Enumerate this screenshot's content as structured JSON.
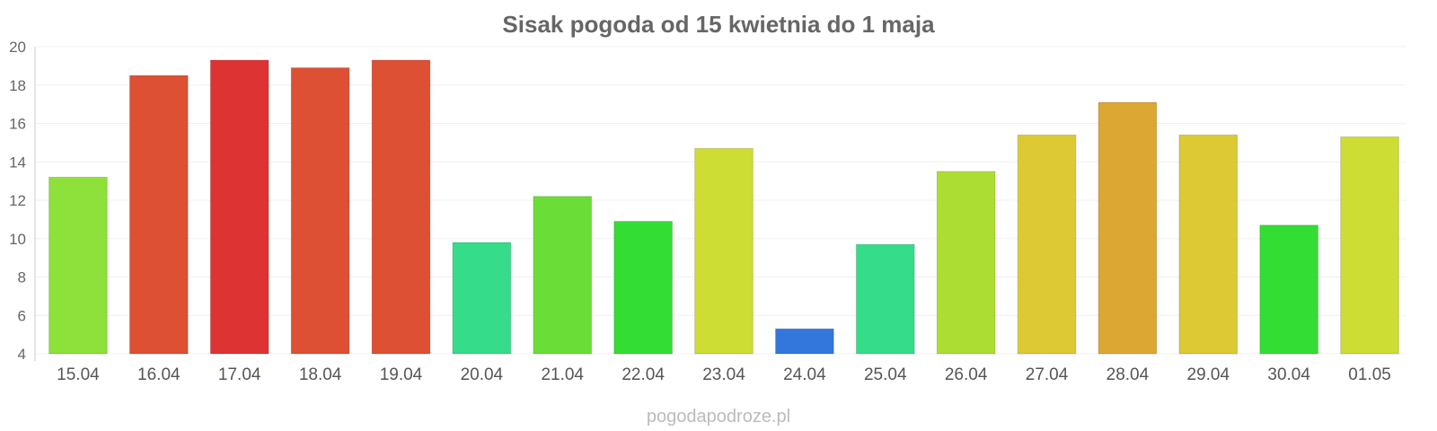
{
  "chart_data": {
    "type": "bar",
    "title": "Sisak pogoda od 15 kwietnia do 1 maja",
    "xlabel": "",
    "ylabel": "",
    "ylim": [
      4,
      20
    ],
    "yticks": [
      4,
      6,
      8,
      10,
      12,
      14,
      16,
      18,
      20
    ],
    "grid": true,
    "categories": [
      "15.04",
      "16.04",
      "17.04",
      "18.04",
      "19.04",
      "20.04",
      "21.04",
      "22.04",
      "23.04",
      "24.04",
      "25.04",
      "26.04",
      "27.04",
      "28.04",
      "29.04",
      "30.04",
      "01.05"
    ],
    "values": [
      13.2,
      18.5,
      19.3,
      18.9,
      19.3,
      9.8,
      12.2,
      10.9,
      14.7,
      5.3,
      9.7,
      13.5,
      15.4,
      17.1,
      15.4,
      10.7,
      15.3
    ],
    "colors": [
      "#8ee03a",
      "#dd5034",
      "#dd3333",
      "#dd5034",
      "#dd5034",
      "#35dc8a",
      "#6ade36",
      "#33dd33",
      "#cddd33",
      "#3377dd",
      "#35dc8a",
      "#acdd33",
      "#ddc933",
      "#dda733",
      "#ddc933",
      "#33dd33",
      "#cddd33"
    ]
  },
  "source": "pogodapodroze.pl"
}
